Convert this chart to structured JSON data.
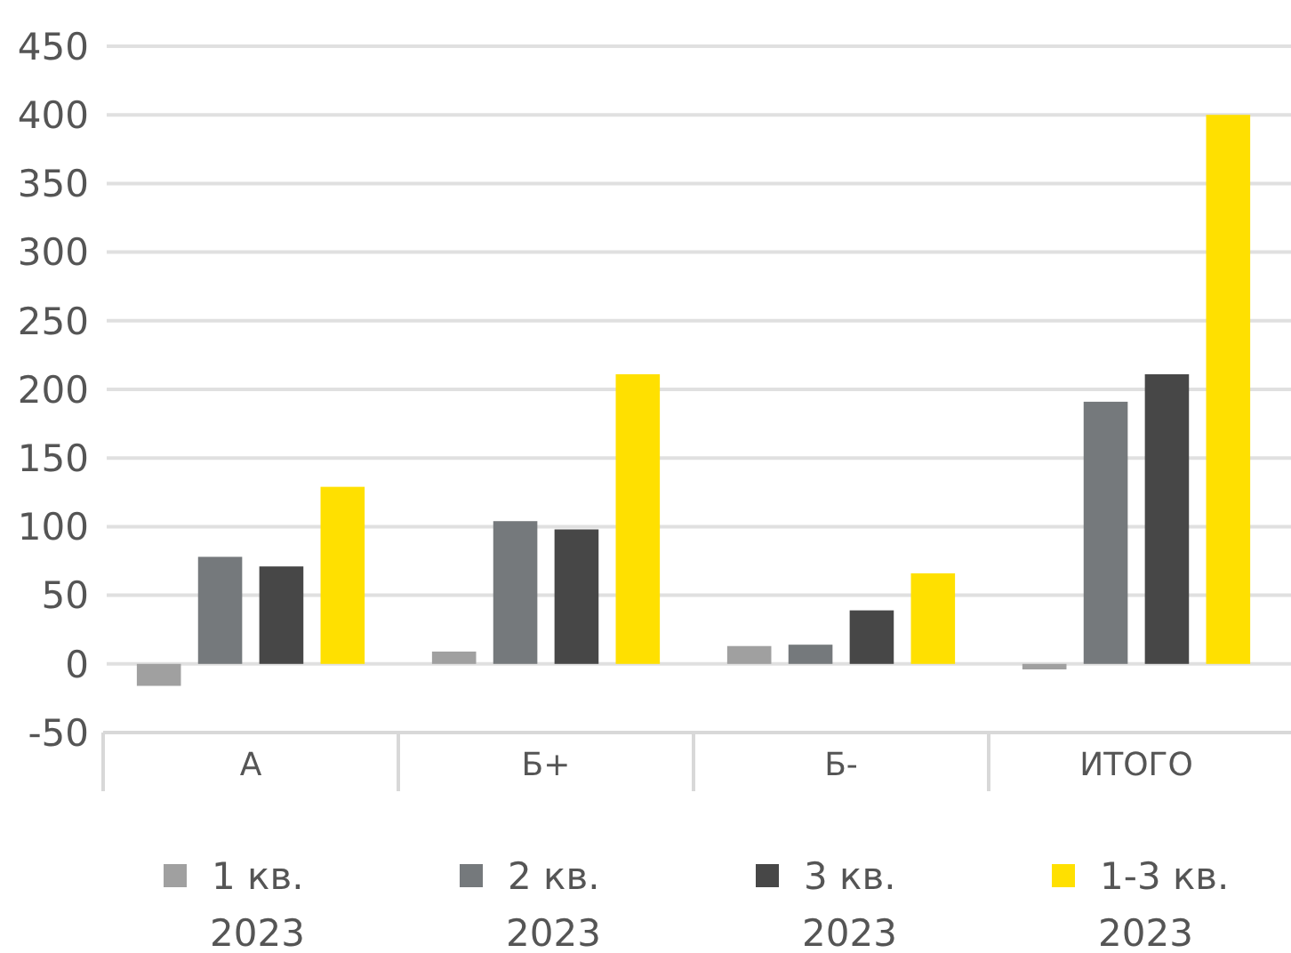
{
  "chart_data": {
    "type": "bar",
    "categories": [
      "А",
      "Б+",
      "Б-",
      "ИТОГО"
    ],
    "series": [
      {
        "name": "1 кв. 2023",
        "color": "#a0a0a0",
        "values": [
          -16,
          9,
          13,
          -4
        ]
      },
      {
        "name": "2 кв. 2023",
        "color": "#75797c",
        "values": [
          78,
          104,
          14,
          191
        ]
      },
      {
        "name": "3 кв. 2023",
        "color": "#474747",
        "values": [
          71,
          98,
          39,
          211
        ]
      },
      {
        "name": "1-3 кв. 2023",
        "color": "#ffe000",
        "values": [
          129,
          211,
          66,
          400
        ]
      }
    ],
    "ylim": [
      -50,
      450
    ],
    "yticks": [
      -50,
      0,
      50,
      100,
      150,
      200,
      250,
      300,
      350,
      400,
      450
    ],
    "grid": "y",
    "legend": "bottom"
  }
}
